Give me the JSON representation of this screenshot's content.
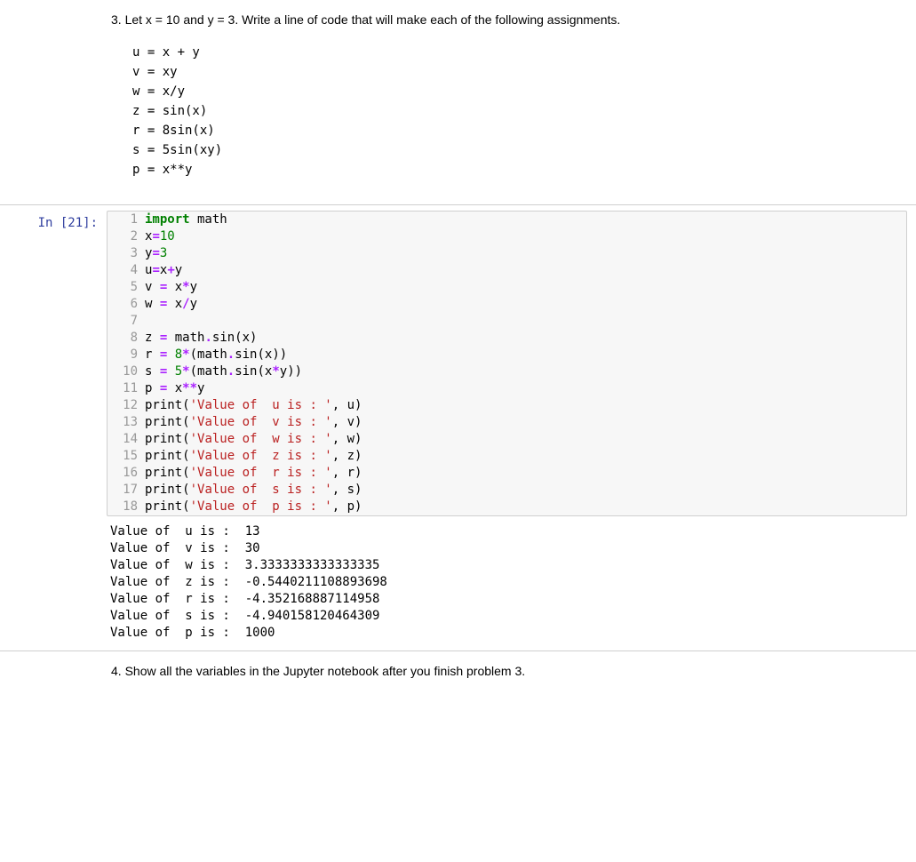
{
  "q3": {
    "text": "3. Let x = 10 and y = 3. Write a line of code that will make each of the following assignments.",
    "equations": [
      "u = x + y",
      "v = xy",
      "w = x/y",
      "z = sin(x)",
      "r = 8sin(x)",
      "s = 5sin(xy)",
      "p = x**y"
    ]
  },
  "cell": {
    "prompt_label": "In [21]:",
    "gutter_color": "#999999",
    "input_bg": "#f7f7f7",
    "border_color": "#cfcfcf",
    "prompt_color": "#303f9f",
    "syntax_colors": {
      "keyword": "#008000",
      "number": "#008000",
      "string": "#ba2121",
      "operator": "#aa22ff",
      "text": "#000000"
    },
    "code_lines": [
      {
        "n": 1,
        "tokens": [
          [
            "kw",
            "import"
          ],
          [
            "nm",
            " math"
          ]
        ]
      },
      {
        "n": 2,
        "tokens": [
          [
            "nm",
            "x"
          ],
          [
            "op",
            "="
          ],
          [
            "num",
            "10"
          ]
        ]
      },
      {
        "n": 3,
        "tokens": [
          [
            "nm",
            "y"
          ],
          [
            "op",
            "="
          ],
          [
            "num",
            "3"
          ]
        ]
      },
      {
        "n": 4,
        "tokens": [
          [
            "nm",
            "u"
          ],
          [
            "op",
            "="
          ],
          [
            "nm",
            "x"
          ],
          [
            "op",
            "+"
          ],
          [
            "nm",
            "y"
          ]
        ]
      },
      {
        "n": 5,
        "tokens": [
          [
            "nm",
            "v "
          ],
          [
            "op",
            "="
          ],
          [
            "nm",
            " x"
          ],
          [
            "op",
            "*"
          ],
          [
            "nm",
            "y"
          ]
        ]
      },
      {
        "n": 6,
        "tokens": [
          [
            "nm",
            "w "
          ],
          [
            "op",
            "="
          ],
          [
            "nm",
            " x"
          ],
          [
            "op",
            "/"
          ],
          [
            "nm",
            "y"
          ]
        ]
      },
      {
        "n": 7,
        "tokens": [
          [
            "nm",
            ""
          ]
        ]
      },
      {
        "n": 8,
        "tokens": [
          [
            "nm",
            "z "
          ],
          [
            "op",
            "="
          ],
          [
            "nm",
            " math"
          ],
          [
            "op",
            "."
          ],
          [
            "nm",
            "sin(x)"
          ]
        ]
      },
      {
        "n": 9,
        "tokens": [
          [
            "nm",
            "r "
          ],
          [
            "op",
            "="
          ],
          [
            "nm",
            " "
          ],
          [
            "num",
            "8"
          ],
          [
            "op",
            "*"
          ],
          [
            "nm",
            "(math"
          ],
          [
            "op",
            "."
          ],
          [
            "nm",
            "sin(x))"
          ]
        ]
      },
      {
        "n": 10,
        "tokens": [
          [
            "nm",
            "s "
          ],
          [
            "op",
            "="
          ],
          [
            "nm",
            " "
          ],
          [
            "num",
            "5"
          ],
          [
            "op",
            "*"
          ],
          [
            "nm",
            "(math"
          ],
          [
            "op",
            "."
          ],
          [
            "nm",
            "sin(x"
          ],
          [
            "op",
            "*"
          ],
          [
            "nm",
            "y))"
          ]
        ]
      },
      {
        "n": 11,
        "tokens": [
          [
            "nm",
            "p "
          ],
          [
            "op",
            "="
          ],
          [
            "nm",
            " x"
          ],
          [
            "op",
            "**"
          ],
          [
            "nm",
            "y"
          ]
        ]
      },
      {
        "n": 12,
        "tokens": [
          [
            "fn",
            "print"
          ],
          [
            "pn",
            "("
          ],
          [
            "str",
            "'Value of  u is : '"
          ],
          [
            "pn",
            ", u)"
          ]
        ]
      },
      {
        "n": 13,
        "tokens": [
          [
            "fn",
            "print"
          ],
          [
            "pn",
            "("
          ],
          [
            "str",
            "'Value of  v is : '"
          ],
          [
            "pn",
            ", v)"
          ]
        ]
      },
      {
        "n": 14,
        "tokens": [
          [
            "fn",
            "print"
          ],
          [
            "pn",
            "("
          ],
          [
            "str",
            "'Value of  w is : '"
          ],
          [
            "pn",
            ", w)"
          ]
        ]
      },
      {
        "n": 15,
        "tokens": [
          [
            "fn",
            "print"
          ],
          [
            "pn",
            "("
          ],
          [
            "str",
            "'Value of  z is : '"
          ],
          [
            "pn",
            ", z)"
          ]
        ]
      },
      {
        "n": 16,
        "tokens": [
          [
            "fn",
            "print"
          ],
          [
            "pn",
            "("
          ],
          [
            "str",
            "'Value of  r is : '"
          ],
          [
            "pn",
            ", r)"
          ]
        ]
      },
      {
        "n": 17,
        "tokens": [
          [
            "fn",
            "print"
          ],
          [
            "pn",
            "("
          ],
          [
            "str",
            "'Value of  s is : '"
          ],
          [
            "pn",
            ", s)"
          ]
        ]
      },
      {
        "n": 18,
        "tokens": [
          [
            "fn",
            "print"
          ],
          [
            "pn",
            "("
          ],
          [
            "str",
            "'Value of  p is : '"
          ],
          [
            "pn",
            ", p)"
          ]
        ]
      }
    ],
    "output_lines": [
      "Value of  u is :  13",
      "Value of  v is :  30",
      "Value of  w is :  3.3333333333333335",
      "Value of  z is :  -0.5440211108893698",
      "Value of  r is :  -4.352168887114958",
      "Value of  s is :  -4.940158120464309",
      "Value of  p is :  1000"
    ]
  },
  "q4": {
    "text": "4. Show all the variables in the Jupyter notebook after you finish problem 3."
  }
}
